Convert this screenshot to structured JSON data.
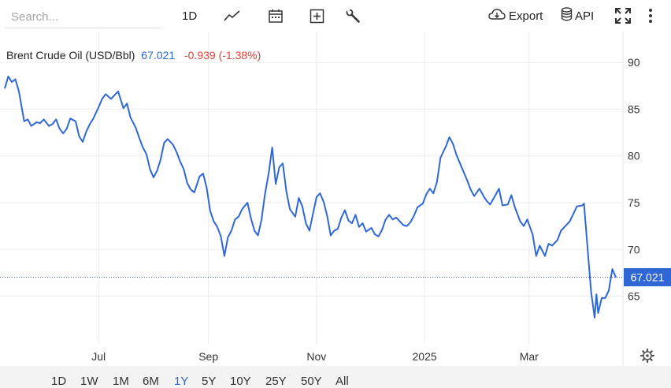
{
  "toolbar": {
    "search_placeholder": "Search...",
    "interval_label": "1D",
    "export_label": "Export",
    "api_label": "API",
    "icons": [
      "line-chart-icon",
      "calendar-icon",
      "plus-square-icon",
      "wrench-icon",
      "cloud-download-icon",
      "database-icon",
      "fullscreen-icon",
      "more-vertical-icon"
    ]
  },
  "legend": {
    "name": "Brent Crude Oil (USD/Bbl)",
    "price": "67.021",
    "change": "-0.939 (-1.38%)"
  },
  "colors": {
    "line": "#2f67d6",
    "price": "#2f67d6",
    "change": "#e0413b",
    "grid": "#ebebeb",
    "bottom_bar": "#f3f3f3"
  },
  "range_buttons": [
    "1D",
    "1W",
    "1M",
    "6M",
    "1Y",
    "5Y",
    "10Y",
    "25Y",
    "50Y",
    "All"
  ],
  "active_range": "1Y",
  "chart_data": {
    "type": "line",
    "title": "Brent Crude Oil (USD/Bbl)",
    "y_axis_side": "right",
    "ylim": [
      59.9,
      93.3
    ],
    "yticks": [
      65,
      70,
      75,
      80,
      85,
      90
    ],
    "x_ticks": [
      {
        "label": "Jul",
        "x": "2024-07-01"
      },
      {
        "label": "Sep",
        "x": "2024-09-01"
      },
      {
        "label": "Nov",
        "x": "2024-11-01"
      },
      {
        "label": "2025",
        "x": "2025-01-01"
      },
      {
        "label": "Mar",
        "x": "2025-03-01"
      }
    ],
    "xlim": [
      "2024-05-09",
      "2025-04-23"
    ],
    "last_value": 67.021,
    "last_value_label": "67.021",
    "grid": true,
    "series": [
      {
        "values": [
          [
            "2024-05-09",
            87.2
          ],
          [
            "2024-05-11",
            88.5
          ],
          [
            "2024-05-13",
            87.9
          ],
          [
            "2024-05-15",
            88.2
          ],
          [
            "2024-05-17",
            86.9
          ],
          [
            "2024-05-20",
            83.7
          ],
          [
            "2024-05-22",
            83.9
          ],
          [
            "2024-05-24",
            83.2
          ],
          [
            "2024-05-27",
            83.6
          ],
          [
            "2024-05-29",
            83.5
          ],
          [
            "2024-05-31",
            83.9
          ],
          [
            "2024-06-03",
            83.2
          ],
          [
            "2024-06-05",
            83.4
          ],
          [
            "2024-06-07",
            83.9
          ],
          [
            "2024-06-09",
            82.9
          ],
          [
            "2024-06-11",
            82.4
          ],
          [
            "2024-06-13",
            82.9
          ],
          [
            "2024-06-15",
            84.0
          ],
          [
            "2024-06-18",
            83.7
          ],
          [
            "2024-06-20",
            82.1
          ],
          [
            "2024-06-22",
            81.5
          ],
          [
            "2024-06-24",
            82.6
          ],
          [
            "2024-06-26",
            83.4
          ],
          [
            "2024-06-28",
            84.0
          ],
          [
            "2024-07-01",
            85.2
          ],
          [
            "2024-07-03",
            86.1
          ],
          [
            "2024-07-05",
            86.6
          ],
          [
            "2024-07-08",
            86.1
          ],
          [
            "2024-07-10",
            86.5
          ],
          [
            "2024-07-12",
            86.9
          ],
          [
            "2024-07-15",
            85.1
          ],
          [
            "2024-07-17",
            85.6
          ],
          [
            "2024-07-19",
            84.1
          ],
          [
            "2024-07-22",
            83.0
          ],
          [
            "2024-07-24",
            81.9
          ],
          [
            "2024-07-26",
            80.9
          ],
          [
            "2024-07-28",
            80.2
          ],
          [
            "2024-07-30",
            78.6
          ],
          [
            "2024-08-01",
            77.7
          ],
          [
            "2024-08-03",
            78.4
          ],
          [
            "2024-08-05",
            79.6
          ],
          [
            "2024-08-07",
            81.4
          ],
          [
            "2024-08-09",
            81.8
          ],
          [
            "2024-08-12",
            81.2
          ],
          [
            "2024-08-14",
            80.4
          ],
          [
            "2024-08-16",
            79.4
          ],
          [
            "2024-08-18",
            78.6
          ],
          [
            "2024-08-20",
            77.1
          ],
          [
            "2024-08-22",
            76.4
          ],
          [
            "2024-08-24",
            76.1
          ],
          [
            "2024-08-27",
            77.8
          ],
          [
            "2024-08-29",
            78.1
          ],
          [
            "2024-08-31",
            76.6
          ],
          [
            "2024-09-02",
            74.1
          ],
          [
            "2024-09-04",
            73.0
          ],
          [
            "2024-09-06",
            72.4
          ],
          [
            "2024-09-08",
            71.4
          ],
          [
            "2024-09-10",
            69.3
          ],
          [
            "2024-09-12",
            71.3
          ],
          [
            "2024-09-14",
            72.0
          ],
          [
            "2024-09-16",
            73.2
          ],
          [
            "2024-09-18",
            73.5
          ],
          [
            "2024-09-20",
            74.3
          ],
          [
            "2024-09-23",
            75.0
          ],
          [
            "2024-09-25",
            73.3
          ],
          [
            "2024-09-27",
            72.0
          ],
          [
            "2024-09-29",
            71.5
          ],
          [
            "2024-10-01",
            73.2
          ],
          [
            "2024-10-03",
            76.0
          ],
          [
            "2024-10-05",
            78.1
          ],
          [
            "2024-10-07",
            80.9
          ],
          [
            "2024-10-09",
            77.0
          ],
          [
            "2024-10-11",
            78.8
          ],
          [
            "2024-10-13",
            79.2
          ],
          [
            "2024-10-15",
            76.2
          ],
          [
            "2024-10-17",
            74.3
          ],
          [
            "2024-10-20",
            73.5
          ],
          [
            "2024-10-22",
            75.5
          ],
          [
            "2024-10-24",
            74.6
          ],
          [
            "2024-10-26",
            72.8
          ],
          [
            "2024-10-28",
            72.0
          ],
          [
            "2024-10-30",
            73.8
          ],
          [
            "2024-11-01",
            75.6
          ],
          [
            "2024-11-03",
            76.0
          ],
          [
            "2024-11-05",
            75.1
          ],
          [
            "2024-11-07",
            73.6
          ],
          [
            "2024-11-09",
            71.5
          ],
          [
            "2024-11-11",
            72.0
          ],
          [
            "2024-11-13",
            72.2
          ],
          [
            "2024-11-15",
            73.4
          ],
          [
            "2024-11-17",
            74.2
          ],
          [
            "2024-11-19",
            73.1
          ],
          [
            "2024-11-21",
            72.8
          ],
          [
            "2024-11-23",
            73.7
          ],
          [
            "2024-11-25",
            72.4
          ],
          [
            "2024-11-27",
            72.8
          ],
          [
            "2024-11-29",
            71.9
          ],
          [
            "2024-12-02",
            72.3
          ],
          [
            "2024-12-04",
            71.6
          ],
          [
            "2024-12-06",
            71.4
          ],
          [
            "2024-12-08",
            72.1
          ],
          [
            "2024-12-10",
            73.2
          ],
          [
            "2024-12-12",
            73.7
          ],
          [
            "2024-12-14",
            73.2
          ],
          [
            "2024-12-16",
            73.4
          ],
          [
            "2024-12-18",
            73.0
          ],
          [
            "2024-12-20",
            72.6
          ],
          [
            "2024-12-22",
            72.5
          ],
          [
            "2024-12-24",
            72.9
          ],
          [
            "2024-12-26",
            73.6
          ],
          [
            "2024-12-28",
            74.5
          ],
          [
            "2024-12-31",
            74.9
          ],
          [
            "2025-01-02",
            75.9
          ],
          [
            "2025-01-04",
            76.5
          ],
          [
            "2025-01-06",
            76.0
          ],
          [
            "2025-01-08",
            77.2
          ],
          [
            "2025-01-10",
            79.8
          ],
          [
            "2025-01-13",
            81.0
          ],
          [
            "2025-01-15",
            82.0
          ],
          [
            "2025-01-17",
            81.3
          ],
          [
            "2025-01-19",
            80.1
          ],
          [
            "2025-01-21",
            79.2
          ],
          [
            "2025-01-23",
            78.3
          ],
          [
            "2025-01-25",
            77.4
          ],
          [
            "2025-01-27",
            76.4
          ],
          [
            "2025-01-29",
            75.7
          ],
          [
            "2025-02-01",
            76.5
          ],
          [
            "2025-02-03",
            75.8
          ],
          [
            "2025-02-05",
            75.2
          ],
          [
            "2025-02-07",
            74.8
          ],
          [
            "2025-02-10",
            75.8
          ],
          [
            "2025-02-12",
            76.5
          ],
          [
            "2025-02-14",
            74.7
          ],
          [
            "2025-02-17",
            74.8
          ],
          [
            "2025-02-19",
            75.8
          ],
          [
            "2025-02-21",
            74.5
          ],
          [
            "2025-02-24",
            73.0
          ],
          [
            "2025-02-26",
            72.5
          ],
          [
            "2025-02-28",
            73.2
          ],
          [
            "2025-03-03",
            71.6
          ],
          [
            "2025-03-05",
            69.3
          ],
          [
            "2025-03-07",
            70.4
          ],
          [
            "2025-03-10",
            69.3
          ],
          [
            "2025-03-12",
            70.6
          ],
          [
            "2025-03-14",
            70.4
          ],
          [
            "2025-03-17",
            71.0
          ],
          [
            "2025-03-19",
            72.0
          ],
          [
            "2025-03-21",
            72.4
          ],
          [
            "2025-03-24",
            73.0
          ],
          [
            "2025-03-26",
            73.8
          ],
          [
            "2025-03-28",
            74.6
          ],
          [
            "2025-03-31",
            74.7
          ],
          [
            "2025-04-01",
            74.9
          ],
          [
            "2025-04-03",
            70.2
          ],
          [
            "2025-04-05",
            65.5
          ],
          [
            "2025-04-07",
            62.7
          ],
          [
            "2025-04-08",
            65.2
          ],
          [
            "2025-04-09",
            63.2
          ],
          [
            "2025-04-11",
            64.8
          ],
          [
            "2025-04-13",
            64.8
          ],
          [
            "2025-04-15",
            65.6
          ],
          [
            "2025-04-17",
            67.9
          ],
          [
            "2025-04-19",
            67.0
          ]
        ]
      }
    ]
  }
}
